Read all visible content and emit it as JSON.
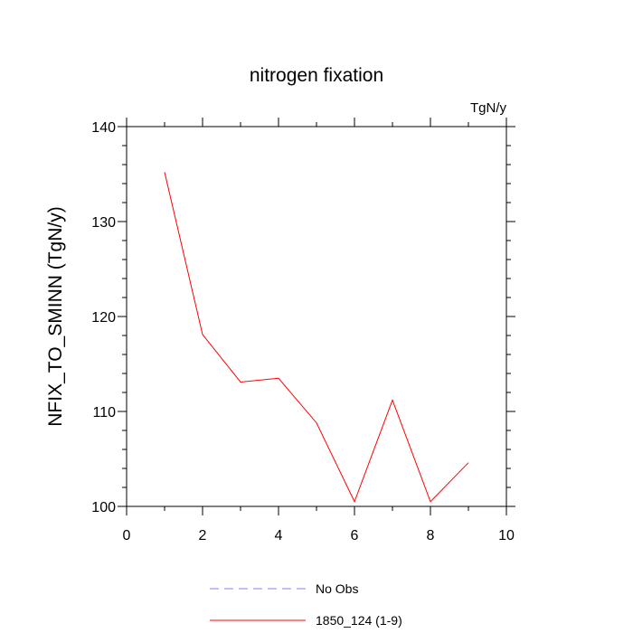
{
  "chart_data": {
    "type": "line",
    "title": "nitrogen fixation",
    "units_label": "TgN/y",
    "xlabel": "",
    "ylabel": "NFIX_TO_SMINN  (TgN/y)",
    "xlim": [
      0,
      10
    ],
    "ylim": [
      100,
      140
    ],
    "xticks": [
      0,
      2,
      4,
      6,
      8,
      10
    ],
    "yticks": [
      100,
      110,
      120,
      130,
      140
    ],
    "x_minor_step": 1,
    "y_minor_step": 2,
    "grid": false,
    "legend_position": "bottom-center",
    "series": [
      {
        "name": "No Obs",
        "color": "#8080ff",
        "style": "dashed",
        "x": [],
        "y": []
      },
      {
        "name": "1850_124 (1-9)",
        "color": "#ff0000",
        "style": "solid",
        "x": [
          1,
          2,
          3,
          4,
          5,
          6,
          7,
          8,
          9
        ],
        "y": [
          135.2,
          118.1,
          113.1,
          113.5,
          108.8,
          100.5,
          111.2,
          100.5,
          104.6
        ]
      }
    ]
  }
}
